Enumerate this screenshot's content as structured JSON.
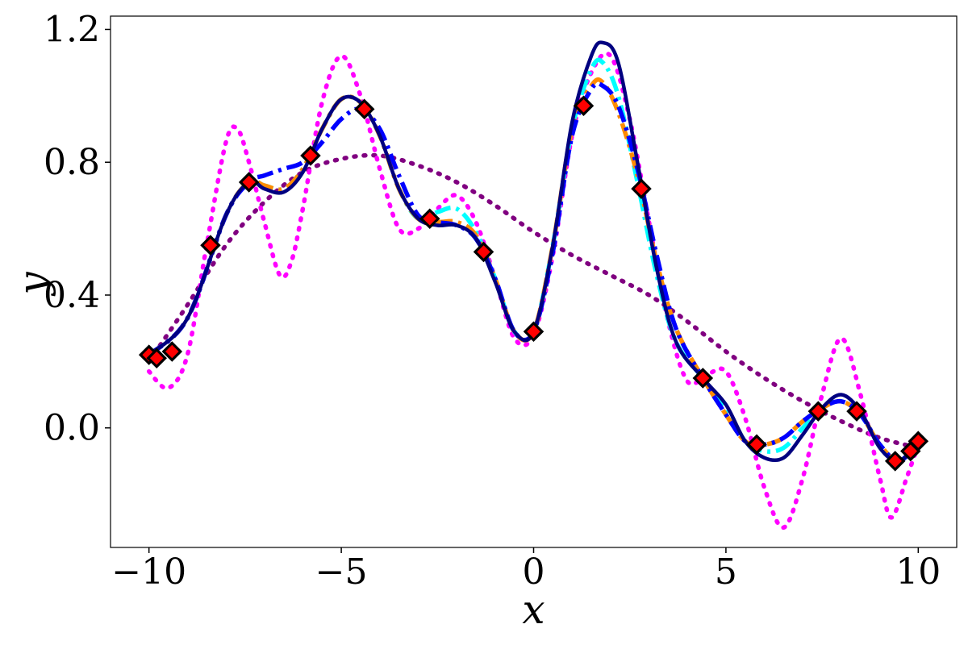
{
  "chart_data": {
    "type": "line",
    "xlabel": "x",
    "ylabel": "y",
    "xlim": [
      -11,
      11
    ],
    "ylim": [
      -0.36,
      1.24
    ],
    "xticks": [
      -10,
      -5,
      0,
      5,
      10
    ],
    "xtick_labels": [
      "−10",
      "−5",
      "0",
      "5",
      "10"
    ],
    "yticks": [
      0.0,
      0.4,
      0.8,
      1.2
    ],
    "ytick_labels": [
      "0.0",
      "0.4",
      "0.8",
      "1.2"
    ],
    "grid": false,
    "series": [
      {
        "color": "#800080",
        "style": "dotted",
        "points": [
          [
            -10,
            0.2
          ],
          [
            -9,
            0.37
          ],
          [
            -8,
            0.55
          ],
          [
            -7,
            0.68
          ],
          [
            -6,
            0.77
          ],
          [
            -5,
            0.81
          ],
          [
            -4,
            0.82
          ],
          [
            -3,
            0.79
          ],
          [
            -2,
            0.74
          ],
          [
            -1,
            0.67
          ],
          [
            0,
            0.59
          ],
          [
            1,
            0.52
          ],
          [
            2,
            0.46
          ],
          [
            3,
            0.4
          ],
          [
            4,
            0.32
          ],
          [
            5,
            0.23
          ],
          [
            6,
            0.15
          ],
          [
            7,
            0.08
          ],
          [
            8,
            0.02
          ],
          [
            9,
            -0.03
          ],
          [
            10,
            -0.06
          ]
        ]
      },
      {
        "color": "#ff00ff",
        "style": "dotted",
        "points": [
          [
            -10,
            0.17
          ],
          [
            -9.5,
            0.12
          ],
          [
            -9,
            0.22
          ],
          [
            -8.5,
            0.55
          ],
          [
            -8,
            0.86
          ],
          [
            -7.7,
            0.9
          ],
          [
            -7.4,
            0.8
          ],
          [
            -7,
            0.62
          ],
          [
            -6.6,
            0.46
          ],
          [
            -6.3,
            0.5
          ],
          [
            -6,
            0.66
          ],
          [
            -5.5,
            0.98
          ],
          [
            -5,
            1.12
          ],
          [
            -4.5,
            1.0
          ],
          [
            -4,
            0.78
          ],
          [
            -3.5,
            0.6
          ],
          [
            -3,
            0.6
          ],
          [
            -2.5,
            0.66
          ],
          [
            -2,
            0.7
          ],
          [
            -1.5,
            0.62
          ],
          [
            -1,
            0.45
          ],
          [
            -0.5,
            0.27
          ],
          [
            0,
            0.28
          ],
          [
            0.5,
            0.52
          ],
          [
            1,
            0.88
          ],
          [
            1.5,
            1.07
          ],
          [
            2,
            1.12
          ],
          [
            2.5,
            0.93
          ],
          [
            3,
            0.62
          ],
          [
            3.5,
            0.32
          ],
          [
            4,
            0.14
          ],
          [
            4.5,
            0.16
          ],
          [
            5,
            0.17
          ],
          [
            5.5,
            0.03
          ],
          [
            6,
            -0.18
          ],
          [
            6.5,
            -0.3
          ],
          [
            7,
            -0.15
          ],
          [
            7.5,
            0.1
          ],
          [
            8,
            0.27
          ],
          [
            8.5,
            0.1
          ],
          [
            9,
            -0.15
          ],
          [
            9.3,
            -0.27
          ],
          [
            9.7,
            -0.15
          ],
          [
            10,
            -0.05
          ]
        ]
      },
      {
        "color": "#00ffff",
        "style": "dashdot",
        "points": [
          [
            -10,
            0.22
          ],
          [
            -9,
            0.33
          ],
          [
            -8,
            0.64
          ],
          [
            -7.4,
            0.74
          ],
          [
            -7,
            0.73
          ],
          [
            -6.5,
            0.72
          ],
          [
            -6,
            0.78
          ],
          [
            -5.5,
            0.9
          ],
          [
            -5,
            0.99
          ],
          [
            -4.5,
            0.98
          ],
          [
            -4,
            0.88
          ],
          [
            -3.5,
            0.72
          ],
          [
            -3,
            0.63
          ],
          [
            -2.5,
            0.65
          ],
          [
            -2,
            0.66
          ],
          [
            -1.5,
            0.59
          ],
          [
            -1,
            0.45
          ],
          [
            -0.5,
            0.29
          ],
          [
            0,
            0.29
          ],
          [
            0.5,
            0.55
          ],
          [
            1,
            0.9
          ],
          [
            1.5,
            1.08
          ],
          [
            1.8,
            1.1
          ],
          [
            2.2,
            1.0
          ],
          [
            2.7,
            0.74
          ],
          [
            3.2,
            0.46
          ],
          [
            3.7,
            0.26
          ],
          [
            4.4,
            0.15
          ],
          [
            5,
            0.06
          ],
          [
            5.5,
            -0.04
          ],
          [
            6,
            -0.07
          ],
          [
            6.5,
            -0.06
          ],
          [
            7,
            0.0
          ],
          [
            7.5,
            0.06
          ],
          [
            8,
            0.08
          ],
          [
            8.5,
            0.04
          ],
          [
            9,
            -0.05
          ],
          [
            9.5,
            -0.1
          ],
          [
            10,
            -0.04
          ]
        ]
      },
      {
        "color": "#ff8c00",
        "style": "dashdot",
        "points": [
          [
            -10,
            0.22
          ],
          [
            -9,
            0.33
          ],
          [
            -8,
            0.64
          ],
          [
            -7.4,
            0.74
          ],
          [
            -7,
            0.73
          ],
          [
            -6.5,
            0.72
          ],
          [
            -6,
            0.78
          ],
          [
            -5.5,
            0.9
          ],
          [
            -5,
            0.99
          ],
          [
            -4.5,
            0.98
          ],
          [
            -4,
            0.88
          ],
          [
            -3.5,
            0.72
          ],
          [
            -3,
            0.63
          ],
          [
            -2.5,
            0.62
          ],
          [
            -2,
            0.62
          ],
          [
            -1.5,
            0.58
          ],
          [
            -1,
            0.45
          ],
          [
            -0.5,
            0.29
          ],
          [
            0,
            0.29
          ],
          [
            0.5,
            0.55
          ],
          [
            1,
            0.9
          ],
          [
            1.5,
            1.03
          ],
          [
            1.8,
            1.04
          ],
          [
            2.2,
            0.95
          ],
          [
            2.7,
            0.76
          ],
          [
            3.2,
            0.5
          ],
          [
            3.7,
            0.3
          ],
          [
            4.4,
            0.15
          ],
          [
            5,
            0.04
          ],
          [
            5.5,
            -0.04
          ],
          [
            6,
            -0.05
          ],
          [
            6.5,
            -0.03
          ],
          [
            7,
            0.02
          ],
          [
            7.5,
            0.06
          ],
          [
            8,
            0.08
          ],
          [
            8.5,
            0.04
          ],
          [
            9,
            -0.05
          ],
          [
            9.5,
            -0.1
          ],
          [
            10,
            -0.04
          ]
        ]
      },
      {
        "color": "#0000ff",
        "style": "dashdot",
        "points": [
          [
            -10,
            0.22
          ],
          [
            -9,
            0.33
          ],
          [
            -8,
            0.64
          ],
          [
            -7.4,
            0.74
          ],
          [
            -7,
            0.76
          ],
          [
            -6.5,
            0.78
          ],
          [
            -6,
            0.8
          ],
          [
            -5.5,
            0.86
          ],
          [
            -5,
            0.93
          ],
          [
            -4.5,
            0.96
          ],
          [
            -4,
            0.9
          ],
          [
            -3.5,
            0.76
          ],
          [
            -3,
            0.64
          ],
          [
            -2.5,
            0.62
          ],
          [
            -2,
            0.61
          ],
          [
            -1.5,
            0.57
          ],
          [
            -1,
            0.45
          ],
          [
            -0.5,
            0.29
          ],
          [
            0,
            0.29
          ],
          [
            0.5,
            0.53
          ],
          [
            1,
            0.88
          ],
          [
            1.5,
            1.02
          ],
          [
            1.8,
            1.03
          ],
          [
            2.2,
            0.97
          ],
          [
            2.7,
            0.78
          ],
          [
            3.2,
            0.52
          ],
          [
            3.7,
            0.3
          ],
          [
            4.4,
            0.15
          ],
          [
            5,
            0.04
          ],
          [
            5.5,
            -0.04
          ],
          [
            6,
            -0.05
          ],
          [
            6.5,
            -0.03
          ],
          [
            7,
            0.02
          ],
          [
            7.5,
            0.06
          ],
          [
            8,
            0.08
          ],
          [
            8.5,
            0.04
          ],
          [
            9,
            -0.05
          ],
          [
            9.5,
            -0.1
          ],
          [
            10,
            -0.04
          ]
        ]
      },
      {
        "color": "#000080",
        "style": "solid",
        "points": [
          [
            -10,
            0.22
          ],
          [
            -9,
            0.33
          ],
          [
            -8,
            0.64
          ],
          [
            -7.4,
            0.74
          ],
          [
            -7,
            0.72
          ],
          [
            -6.5,
            0.71
          ],
          [
            -6,
            0.77
          ],
          [
            -5.5,
            0.9
          ],
          [
            -5,
            0.99
          ],
          [
            -4.5,
            0.98
          ],
          [
            -4,
            0.88
          ],
          [
            -3.5,
            0.72
          ],
          [
            -3,
            0.63
          ],
          [
            -2.5,
            0.61
          ],
          [
            -2,
            0.61
          ],
          [
            -1.5,
            0.57
          ],
          [
            -1,
            0.44
          ],
          [
            -0.5,
            0.29
          ],
          [
            0,
            0.29
          ],
          [
            0.5,
            0.55
          ],
          [
            1,
            0.92
          ],
          [
            1.5,
            1.12
          ],
          [
            1.8,
            1.16
          ],
          [
            2.2,
            1.1
          ],
          [
            2.7,
            0.8
          ],
          [
            3.2,
            0.48
          ],
          [
            3.7,
            0.26
          ],
          [
            4.4,
            0.15
          ],
          [
            5,
            0.07
          ],
          [
            5.5,
            -0.04
          ],
          [
            6,
            -0.09
          ],
          [
            6.5,
            -0.09
          ],
          [
            7,
            -0.02
          ],
          [
            7.5,
            0.06
          ],
          [
            8,
            0.1
          ],
          [
            8.5,
            0.05
          ],
          [
            9,
            -0.06
          ],
          [
            9.5,
            -0.1
          ],
          [
            10,
            -0.04
          ]
        ]
      }
    ],
    "markers": {
      "shape": "diamond",
      "face_color": "#ff0000",
      "edge_color": "#000000",
      "points": [
        [
          -10,
          0.22
        ],
        [
          -9.8,
          0.21
        ],
        [
          -9.4,
          0.23
        ],
        [
          -8.4,
          0.55
        ],
        [
          -7.4,
          0.74
        ],
        [
          -5.8,
          0.82
        ],
        [
          -4.4,
          0.96
        ],
        [
          -2.7,
          0.63
        ],
        [
          -1.3,
          0.53
        ],
        [
          0,
          0.29
        ],
        [
          1.3,
          0.97
        ],
        [
          2.8,
          0.72
        ],
        [
          4.4,
          0.15
        ],
        [
          5.8,
          -0.05
        ],
        [
          7.4,
          0.05
        ],
        [
          8.4,
          0.05
        ],
        [
          9.4,
          -0.1
        ],
        [
          9.8,
          -0.07
        ],
        [
          10,
          -0.04
        ]
      ]
    }
  }
}
